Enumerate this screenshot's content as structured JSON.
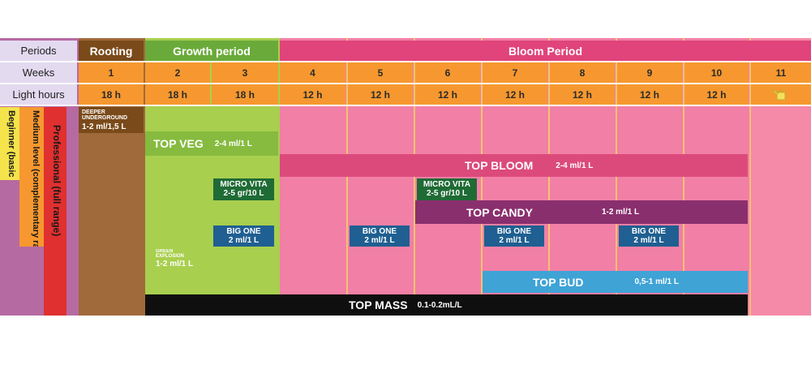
{
  "row_labels": {
    "periods": "Periods",
    "weeks": "Weeks",
    "light_hours": "Light hours"
  },
  "periods": [
    {
      "label": "Rooting",
      "color": "#7a4a1a"
    },
    {
      "label": "Growth period",
      "color": "#6aaa3a"
    },
    {
      "label": "Bloom Period",
      "color": "#e0447a"
    }
  ],
  "weeks": [
    "1",
    "2",
    "3",
    "4",
    "5",
    "6",
    "7",
    "8",
    "9",
    "10",
    "11"
  ],
  "light_hours": [
    "18 h",
    "18 h",
    "18 h",
    "12 h",
    "12 h",
    "12 h",
    "12 h",
    "12 h",
    "12 h",
    "12 h"
  ],
  "light_hours_week11_icon": "watering-can-icon",
  "levels": [
    {
      "label": "Beginner (basic range)",
      "color": "#f4e34a"
    },
    {
      "label": "Medium level (complementary range)",
      "color": "#f6982f"
    },
    {
      "label": "Professional (full range)",
      "color": "#e0302f"
    }
  ],
  "products": {
    "deeper_underground": {
      "name": "DEEPER UNDERGROUND",
      "dose": "1-2 ml/1,5 L",
      "color": "#7a4a1a"
    },
    "top_veg": {
      "name": "TOP VEG",
      "dose": "2-4 ml/1 L",
      "color": "#86bb3f"
    },
    "top_bloom": {
      "name": "TOP BLOOM",
      "dose": "2-4 ml/1 L",
      "color": "#dc4a7b"
    },
    "micro_vita_1": {
      "name": "MICRO VITA",
      "dose": "2-5 gr/10 L",
      "color": "#1f6b35"
    },
    "micro_vita_2": {
      "name": "MICRO VITA",
      "dose": "2-5 gr/10 L",
      "color": "#1f6b35"
    },
    "top_candy": {
      "name": "TOP CANDY",
      "dose": "1-2 ml/1 L",
      "color": "#8a2f6e"
    },
    "big_one_1": {
      "name": "BIG ONE",
      "dose": "2 ml/1 L",
      "color": "#1f5f91"
    },
    "big_one_2": {
      "name": "BIG ONE",
      "dose": "2 ml/1 L",
      "color": "#1f5f91"
    },
    "big_one_3": {
      "name": "BIG ONE",
      "dose": "2 ml/1 L",
      "color": "#1f5f91"
    },
    "big_one_4": {
      "name": "BIG ONE",
      "dose": "2 ml/1 L",
      "color": "#1f5f91"
    },
    "green_explosion": {
      "name": "GREEN EXPLOSION",
      "dose": "1-2 ml/1 L",
      "color": "#8bc34a"
    },
    "top_bud": {
      "name": "TOP BUD",
      "dose": "0,5-1 ml/1 L",
      "color": "#3fa3d6"
    },
    "top_mass": {
      "name": "TOP MASS",
      "dose": "0.1-0.2mL/L",
      "color": "#0f0f0f"
    }
  }
}
